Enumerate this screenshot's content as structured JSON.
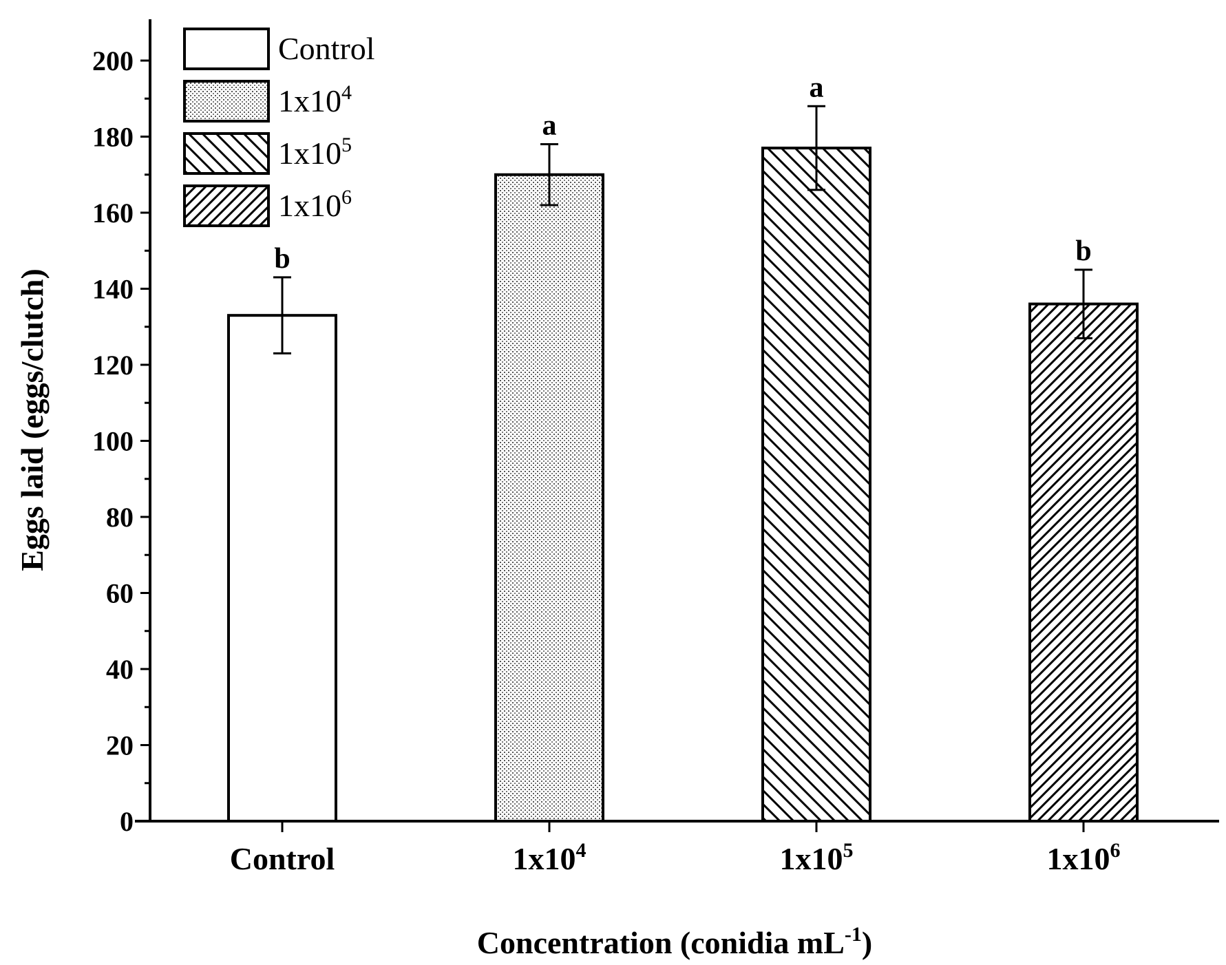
{
  "chart_data": {
    "type": "bar",
    "title": "",
    "xlabel": "Concentration (conidia mL-1)",
    "xlabel_main": "Concentration (conidia mL",
    "xlabel_sup": "-1",
    "xlabel_close": ")",
    "ylabel": "Eggs laid (eggs/clutch)",
    "ylim": [
      0,
      210
    ],
    "yticks": [
      0,
      20,
      40,
      60,
      80,
      100,
      120,
      140,
      160,
      180,
      200
    ],
    "ytick_labels": [
      "0",
      "20",
      "40",
      "60",
      "80",
      "100",
      "120",
      "140",
      "160",
      "180",
      "200"
    ],
    "categories": [
      {
        "name": "Control",
        "base": "Control",
        "sup": ""
      },
      {
        "name": "1x10^4",
        "base": "1x10",
        "sup": "4"
      },
      {
        "name": "1x10^5",
        "base": "1x10",
        "sup": "5"
      },
      {
        "name": "1x10^6",
        "base": "1x10",
        "sup": "6"
      }
    ],
    "values": [
      133,
      170,
      177,
      136
    ],
    "errors": [
      10,
      8,
      11,
      9
    ],
    "significance": [
      "b",
      "a",
      "a",
      "b"
    ],
    "patterns": [
      "none",
      "dots",
      "back-diagonal",
      "forward-diagonal"
    ],
    "legend": {
      "position": "top-left",
      "entries": [
        {
          "base": "Control",
          "sup": "",
          "pattern": "none"
        },
        {
          "base": "1x10",
          "sup": "4",
          "pattern": "dots"
        },
        {
          "base": "1x10",
          "sup": "5",
          "pattern": "back-diagonal"
        },
        {
          "base": "1x10",
          "sup": "6",
          "pattern": "forward-diagonal"
        }
      ]
    },
    "colors": {
      "stroke": "#000000",
      "fill": "#ffffff"
    }
  }
}
